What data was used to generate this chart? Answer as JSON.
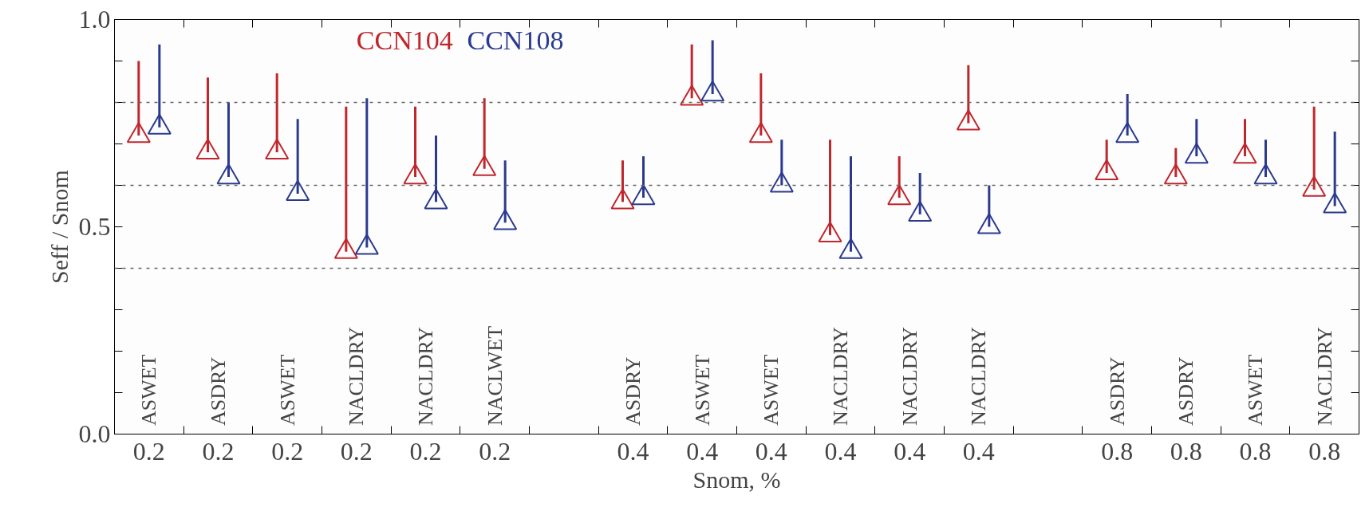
{
  "chart_data": {
    "type": "scatter",
    "xlabel": "Snom, %",
    "ylabel": "Seff / Snom",
    "categories": [
      "0.2",
      "0.2",
      "0.2",
      "0.2",
      "0.2",
      "0.2",
      null,
      "0.4",
      "0.4",
      "0.4",
      "0.4",
      "0.4",
      "0.4",
      null,
      "0.8",
      "0.8",
      "0.8",
      "0.8"
    ],
    "series": [
      {
        "name": "CCN104",
        "color": "#c0272d",
        "values": [
          0.72,
          0.68,
          0.68,
          0.44,
          0.62,
          0.64,
          null,
          0.56,
          0.81,
          0.72,
          0.48,
          0.57,
          0.75,
          null,
          0.63,
          0.62,
          0.67,
          0.59
        ],
        "errors": [
          [
            0.72,
            0.9
          ],
          [
            0.68,
            0.86
          ],
          [
            0.68,
            0.87
          ],
          [
            0.44,
            0.79
          ],
          [
            0.62,
            0.79
          ],
          [
            0.64,
            0.81
          ],
          null,
          [
            0.56,
            0.66
          ],
          [
            0.81,
            0.94
          ],
          [
            0.72,
            0.87
          ],
          [
            0.48,
            0.71
          ],
          [
            0.57,
            0.67
          ],
          [
            0.75,
            0.89
          ],
          null,
          [
            0.63,
            0.71
          ],
          [
            0.62,
            0.69
          ],
          [
            0.67,
            0.76
          ],
          [
            0.59,
            0.79
          ]
        ]
      },
      {
        "name": "CCN108",
        "color": "#2b3a8f",
        "values": [
          0.74,
          0.62,
          0.58,
          0.45,
          0.56,
          0.51,
          null,
          0.57,
          0.82,
          0.6,
          0.44,
          0.53,
          0.5,
          null,
          0.72,
          0.67,
          0.62,
          0.55
        ],
        "errors": [
          [
            0.74,
            0.94
          ],
          [
            0.62,
            0.8
          ],
          [
            0.58,
            0.76
          ],
          [
            0.45,
            0.81
          ],
          [
            0.56,
            0.72
          ],
          [
            0.51,
            0.66
          ],
          null,
          [
            0.57,
            0.67
          ],
          [
            0.82,
            0.95
          ],
          [
            0.6,
            0.71
          ],
          [
            0.44,
            0.67
          ],
          [
            0.53,
            0.63
          ],
          [
            0.5,
            0.6
          ],
          null,
          [
            0.72,
            0.82
          ],
          [
            0.67,
            0.76
          ],
          [
            0.62,
            0.71
          ],
          [
            0.55,
            0.73
          ]
        ]
      }
    ],
    "annotations": [
      "ASWET",
      "ASDRY",
      "ASWET",
      "NACLDRY",
      "NACLDRY",
      "NACLWET",
      "ASDRY",
      "ASWET",
      "ASWET",
      "NACLDRY",
      "NACLDRY",
      "NACLDRY",
      "ASDRY",
      "ASDRY",
      "ASWET",
      "NACLDRY"
    ],
    "ylim": [
      0,
      1
    ],
    "yticks": [
      {
        "value": 0,
        "label": "0.0"
      },
      {
        "value": 0.1,
        "label": null
      },
      {
        "value": 0.2,
        "label": null
      },
      {
        "value": 0.3,
        "label": null
      },
      {
        "value": 0.4,
        "label": null
      },
      0.5,
      {
        "value": 0.6,
        "label": null
      },
      {
        "value": 0.7,
        "label": null
      },
      {
        "value": 0.8,
        "label": null
      },
      {
        "value": 0.9,
        "label": null
      },
      {
        "value": 1,
        "label": "1.0"
      }
    ],
    "ref_lines": [
      {
        "axis": "y",
        "value": 0.4,
        "color": "#666666",
        "line_style": "dashed"
      },
      {
        "axis": "y",
        "value": 0.6,
        "color": "#666666",
        "line_style": "dashed"
      },
      {
        "axis": "y",
        "value": 0.8,
        "color": "#666666",
        "line_style": "dashed"
      }
    ],
    "marker": "triangle",
    "legend": "top",
    "grid": false
  }
}
